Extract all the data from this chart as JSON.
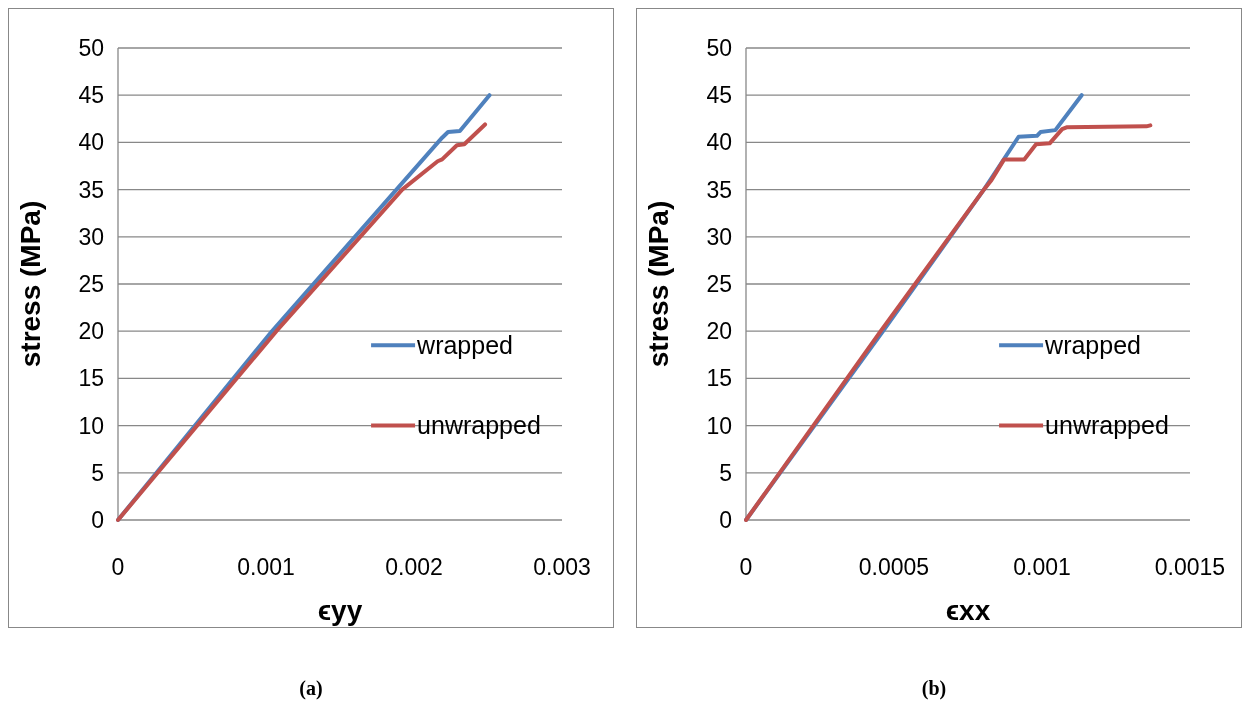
{
  "chart_data": [
    {
      "type": "line",
      "xlabel": "ϵyy",
      "ylabel": "stress (MPa)",
      "xlim": [
        0,
        0.003
      ],
      "xticks": [
        0,
        0.001,
        0.002,
        0.003
      ],
      "ylim": [
        0,
        50
      ],
      "yticks": [
        0,
        5,
        10,
        15,
        20,
        25,
        30,
        35,
        40,
        45,
        50
      ],
      "grid": "y",
      "legend": "right",
      "annotations": [
        "(a)"
      ],
      "series": [
        {
          "name": "wrapped",
          "color": "#4f81bd",
          "x": [
            0,
            0.00104,
            0.00219,
            0.00223,
            0.00231,
            0.00251
          ],
          "values": [
            0,
            20,
            40.5,
            41.1,
            41.2,
            45
          ]
        },
        {
          "name": "unwrapped",
          "color": "#c0504d",
          "x": [
            0,
            0.00107,
            0.00192,
            0.00216,
            0.00219,
            0.00229,
            0.00234,
            0.00248
          ],
          "values": [
            0,
            20,
            35,
            38.0,
            38.2,
            39.7,
            39.8,
            41.9
          ]
        }
      ]
    },
    {
      "type": "line",
      "xlabel": "ϵxx",
      "ylabel": "stress (MPa)",
      "xlim": [
        0,
        0.0015
      ],
      "xticks": [
        0,
        0.0005,
        0.001,
        0.0015
      ],
      "ylim": [
        0,
        50
      ],
      "yticks": [
        0,
        5,
        10,
        15,
        20,
        25,
        30,
        35,
        40,
        45,
        50
      ],
      "grid": "y",
      "legend": "right",
      "annotations": [
        "(b)"
      ],
      "series": [
        {
          "name": "wrapped",
          "color": "#4f81bd",
          "x": [
            0,
            0.000463,
            0.000806,
            0.000921,
            0.000983,
            0.000995,
            0.001045,
            0.001134
          ],
          "values": [
            0,
            20,
            35.1,
            40.6,
            40.7,
            41.1,
            41.3,
            45
          ]
        },
        {
          "name": "unwrapped",
          "color": "#c0504d",
          "x": [
            0,
            0.000455,
            0.000806,
            0.000829,
            0.000872,
            0.00094,
            0.00098,
            0.001026,
            0.001068,
            0.001083,
            0.001353,
            0.001366
          ],
          "values": [
            0,
            20,
            35.1,
            36.0,
            38.2,
            38.2,
            39.8,
            39.9,
            41.4,
            41.6,
            41.7,
            41.8
          ]
        }
      ]
    }
  ]
}
